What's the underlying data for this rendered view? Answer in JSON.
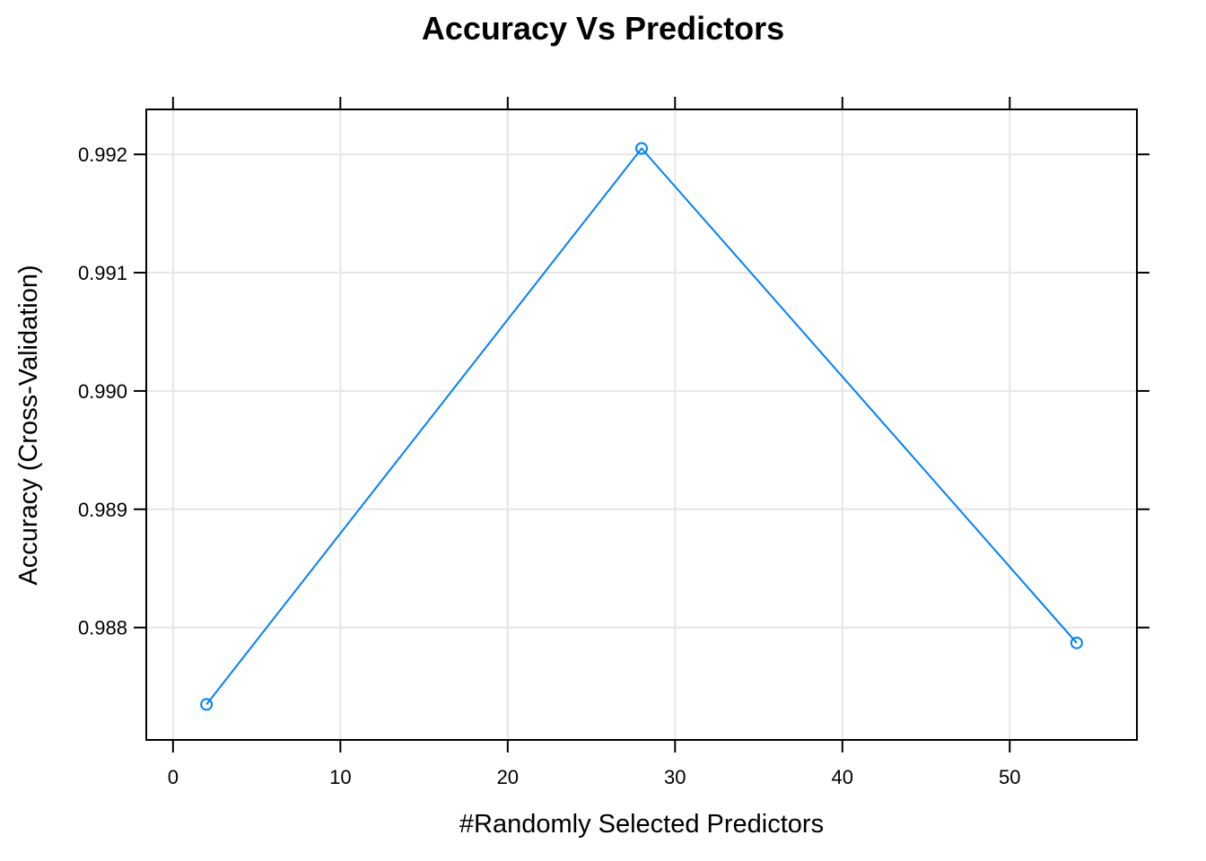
{
  "chart_data": {
    "type": "line",
    "title": "Accuracy Vs Predictors",
    "xlabel": "#Randomly Selected Predictors",
    "ylabel": "Accuracy (Cross-Validation)",
    "xlim": [
      -1.6,
      57.6
    ],
    "ylim": [
      0.98705,
      0.99238
    ],
    "x_ticks": [
      0,
      10,
      20,
      30,
      40,
      50
    ],
    "x_tick_labels": [
      "0",
      "10",
      "20",
      "30",
      "40",
      "50"
    ],
    "y_ticks": [
      0.988,
      0.989,
      0.99,
      0.991,
      0.992
    ],
    "y_tick_labels": [
      "0.988",
      "0.989",
      "0.990",
      "0.991",
      "0.992"
    ],
    "grid": true,
    "series": [
      {
        "color": "#0080ff",
        "x": [
          2,
          28,
          54
        ],
        "y": [
          0.98735,
          0.99205,
          0.98787
        ]
      }
    ]
  }
}
